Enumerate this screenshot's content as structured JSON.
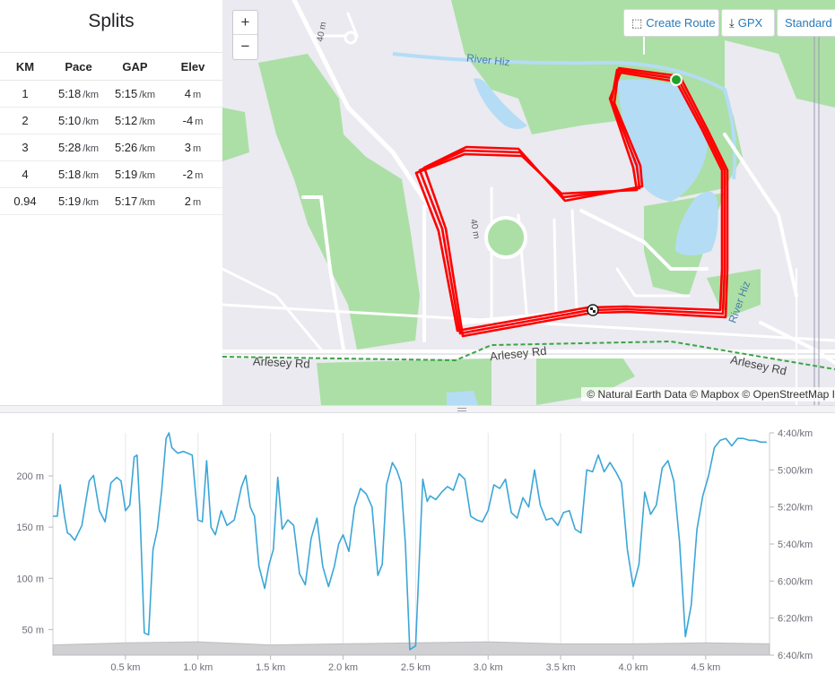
{
  "splits": {
    "title": "Splits",
    "headers": [
      "KM",
      "Pace",
      "GAP",
      "Elev"
    ],
    "rows": [
      {
        "km": "1",
        "pace": "5:18",
        "pace_unit": "/km",
        "gap": "5:15",
        "gap_unit": "/km",
        "elev": "4",
        "elev_unit": "m"
      },
      {
        "km": "2",
        "pace": "5:10",
        "pace_unit": "/km",
        "gap": "5:12",
        "gap_unit": "/km",
        "elev": "-4",
        "elev_unit": "m"
      },
      {
        "km": "3",
        "pace": "5:28",
        "pace_unit": "/km",
        "gap": "5:26",
        "gap_unit": "/km",
        "elev": "3",
        "elev_unit": "m"
      },
      {
        "km": "4",
        "pace": "5:18",
        "pace_unit": "/km",
        "gap": "5:19",
        "gap_unit": "/km",
        "elev": "-2",
        "elev_unit": "m"
      },
      {
        "km": "0.94",
        "pace": "5:19",
        "pace_unit": "/km",
        "gap": "5:17",
        "gap_unit": "/km",
        "elev": "2",
        "elev_unit": "m"
      }
    ]
  },
  "map": {
    "zoom_in": "+",
    "zoom_out": "−",
    "create_route": "Create Route",
    "gpx": "GPX",
    "map_style": "Standard M",
    "attribution": "© Natural Earth Data © Mapbox © OpenStreetMap I",
    "labels": {
      "river1": "River Hiz",
      "river2": "River Hiz",
      "road1": "Arlesey Rd",
      "road2": "Arlesey Rd",
      "road3": "Arlesey Rd",
      "contour1": "40 m",
      "contour2": "40 m"
    },
    "colors": {
      "route": "#ff0000",
      "water": "#b4dcf5",
      "park": "#acdfa6",
      "start": "#1fa12a"
    }
  },
  "chart_data": {
    "type": "line",
    "x_ticks": [
      "0.5 km",
      "1.0 km",
      "1.5 km",
      "2.0 km",
      "2.5 km",
      "3.0 km",
      "3.5 km",
      "4.0 km",
      "4.5 km"
    ],
    "x_tick_values": [
      0.5,
      1.0,
      1.5,
      2.0,
      2.5,
      3.0,
      3.5,
      4.0,
      4.5
    ],
    "xlim": [
      0,
      4.94
    ],
    "left_axis": {
      "ticks": [
        "50 m",
        "100 m",
        "150 m",
        "200 m"
      ],
      "tick_values": [
        50,
        100,
        150,
        200
      ],
      "ylim": [
        25,
        242
      ]
    },
    "right_axis": {
      "ticks": [
        "4:40/km",
        "5:00/km",
        "5:20/km",
        "5:40/km",
        "6:00/km",
        "6:20/km",
        "6:40/km"
      ],
      "tick_values_sec": [
        280,
        300,
        320,
        340,
        360,
        380,
        400
      ],
      "ylim_sec": [
        400,
        280
      ]
    },
    "series": [
      {
        "axis": "right",
        "color": "#3ba6d8",
        "x": [
          0.0,
          0.03,
          0.05,
          0.08,
          0.1,
          0.12,
          0.15,
          0.2,
          0.25,
          0.28,
          0.32,
          0.36,
          0.4,
          0.44,
          0.47,
          0.5,
          0.53,
          0.56,
          0.58,
          0.6,
          0.63,
          0.66,
          0.69,
          0.72,
          0.75,
          0.78,
          0.8,
          0.82,
          0.86,
          0.9,
          0.93,
          0.96,
          1.0,
          1.03,
          1.06,
          1.09,
          1.12,
          1.16,
          1.2,
          1.25,
          1.3,
          1.33,
          1.36,
          1.39,
          1.42,
          1.46,
          1.49,
          1.52,
          1.55,
          1.58,
          1.62,
          1.66,
          1.7,
          1.74,
          1.78,
          1.82,
          1.86,
          1.9,
          1.94,
          1.97,
          2.0,
          2.04,
          2.08,
          2.12,
          2.16,
          2.2,
          2.24,
          2.27,
          2.3,
          2.34,
          2.37,
          2.4,
          2.43,
          2.46,
          2.5,
          2.55,
          2.58,
          2.6,
          2.64,
          2.68,
          2.72,
          2.76,
          2.8,
          2.84,
          2.88,
          2.92,
          2.96,
          3.0,
          3.04,
          3.08,
          3.12,
          3.16,
          3.2,
          3.24,
          3.28,
          3.32,
          3.36,
          3.4,
          3.44,
          3.48,
          3.52,
          3.56,
          3.6,
          3.64,
          3.68,
          3.72,
          3.76,
          3.8,
          3.84,
          3.88,
          3.92,
          3.96,
          4.0,
          4.04,
          4.08,
          4.12,
          4.16,
          4.2,
          4.24,
          4.28,
          4.32,
          4.36,
          4.4,
          4.44,
          4.48,
          4.52,
          4.56,
          4.6,
          4.64,
          4.68,
          4.72,
          4.76,
          4.8,
          4.84,
          4.88,
          4.92
        ],
        "y": [
          325,
          325,
          308,
          325,
          334,
          335,
          338,
          330,
          306,
          303,
          322,
          328,
          307,
          304,
          306,
          322,
          319,
          293,
          292,
          322,
          388,
          389,
          343,
          332,
          311,
          283,
          280,
          288,
          291,
          290,
          291,
          292,
          327,
          328,
          295,
          331,
          335,
          322,
          330,
          327,
          309,
          303,
          320,
          325,
          352,
          364,
          351,
          343,
          304,
          332,
          327,
          330,
          356,
          362,
          337,
          326,
          352,
          363,
          352,
          340,
          335,
          344,
          320,
          310,
          313,
          320,
          357,
          351,
          308,
          296,
          300,
          307,
          340,
          397,
          395,
          305,
          317,
          314,
          316,
          312,
          309,
          311,
          302,
          305,
          325,
          327,
          328,
          322,
          308,
          310,
          305,
          323,
          326,
          315,
          320,
          300,
          319,
          327,
          326,
          330,
          323,
          322,
          332,
          334,
          300,
          301,
          292,
          301,
          296,
          301,
          307,
          343,
          363,
          351,
          312,
          324,
          319,
          299,
          295,
          306,
          339,
          390,
          373,
          332,
          314,
          303,
          288,
          284,
          283,
          287,
          283,
          283,
          284,
          284,
          285,
          285
        ]
      },
      {
        "axis": "left",
        "color": "#d0d0d3",
        "fill": "area",
        "x": [
          0.0,
          0.5,
          1.0,
          1.5,
          2.0,
          2.5,
          3.0,
          3.5,
          4.0,
          4.5,
          4.94
        ],
        "y": [
          35,
          37,
          38,
          35,
          36,
          37,
          38,
          36,
          36,
          37,
          36
        ]
      }
    ]
  }
}
